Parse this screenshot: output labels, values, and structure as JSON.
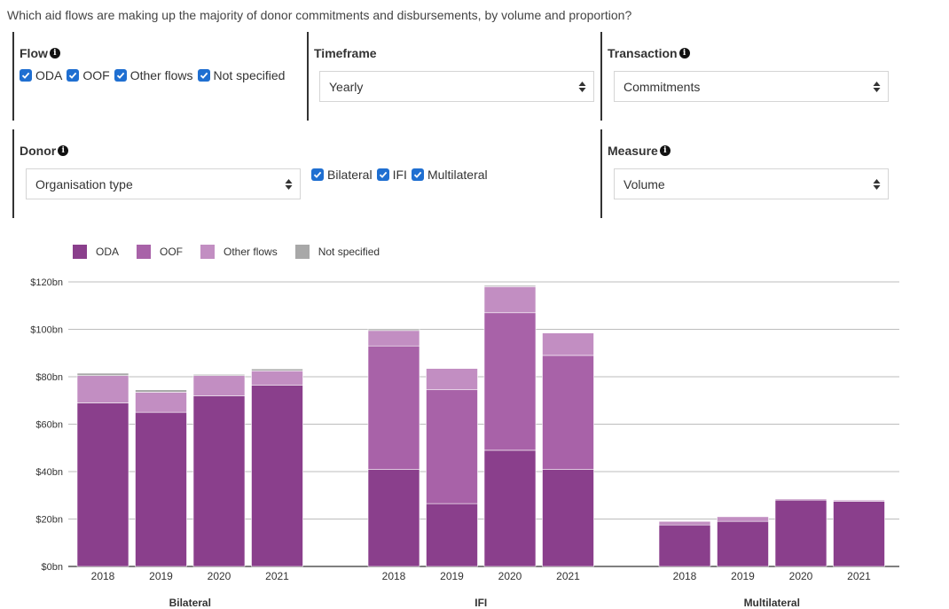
{
  "question": "Which aid flows are making up the majority of donor commitments and disbursements, by volume and proportion?",
  "filters": {
    "flow": {
      "title": "Flow",
      "options": [
        {
          "label": "ODA",
          "checked": true
        },
        {
          "label": "OOF",
          "checked": true
        },
        {
          "label": "Other flows",
          "checked": true
        },
        {
          "label": "Not specified",
          "checked": true
        }
      ]
    },
    "timeframe": {
      "title": "Timeframe",
      "value": "Yearly"
    },
    "transaction": {
      "title": "Transaction",
      "value": "Commitments"
    },
    "donor": {
      "title": "Donor",
      "value": "Organisation type",
      "options": [
        {
          "label": "Bilateral",
          "checked": true
        },
        {
          "label": "IFI",
          "checked": true
        },
        {
          "label": "Multilateral",
          "checked": true
        }
      ]
    },
    "measure": {
      "title": "Measure",
      "value": "Volume"
    }
  },
  "icons": {
    "info": "info-icon",
    "checkbox": "checkmark-icon",
    "select": "up-down-arrows-icon"
  },
  "colors": {
    "ODA": "#8a3f8c",
    "OOF": "#a862a8",
    "Other flows": "#c28ec2",
    "Not specified": "#a8a8a8",
    "checkbox": "#1f6fd1"
  },
  "chart_data": {
    "type": "bar",
    "stacked": true,
    "ylim": [
      0,
      120
    ],
    "yticks": [
      "$0bn",
      "$20bn",
      "$40bn",
      "$60bn",
      "$80bn",
      "$100bn",
      "$120bn"
    ],
    "ytick_values": [
      0,
      20,
      40,
      60,
      80,
      100,
      120
    ],
    "grid": true,
    "legend_position": "top-left",
    "groups": [
      {
        "name": "Bilateral",
        "categories": [
          "2018",
          "2019",
          "2020",
          "2021"
        ]
      },
      {
        "name": "IFI",
        "categories": [
          "2018",
          "2019",
          "2020",
          "2021"
        ]
      },
      {
        "name": "Multilateral",
        "categories": [
          "2018",
          "2019",
          "2020",
          "2021"
        ]
      }
    ],
    "series": [
      {
        "name": "ODA",
        "values": [
          [
            69,
            65,
            72,
            76.5
          ],
          [
            41,
            26.5,
            49,
            41
          ],
          [
            17.5,
            19,
            28,
            27.5
          ]
        ]
      },
      {
        "name": "OOF",
        "values": [
          [
            0,
            0,
            0,
            0
          ],
          [
            52,
            48,
            58,
            48
          ],
          [
            0,
            0,
            0,
            0
          ]
        ]
      },
      {
        "name": "Other flows",
        "values": [
          [
            11.5,
            8.5,
            8.5,
            6
          ],
          [
            6.5,
            9,
            11,
            9.5
          ],
          [
            1.5,
            2,
            0.5,
            0.5
          ]
        ]
      },
      {
        "name": "Not specified",
        "values": [
          [
            1,
            1,
            0.5,
            0.8
          ],
          [
            0.7,
            0.2,
            0.5,
            0.2
          ],
          [
            0.2,
            0.2,
            0.2,
            0.2
          ]
        ]
      }
    ]
  }
}
